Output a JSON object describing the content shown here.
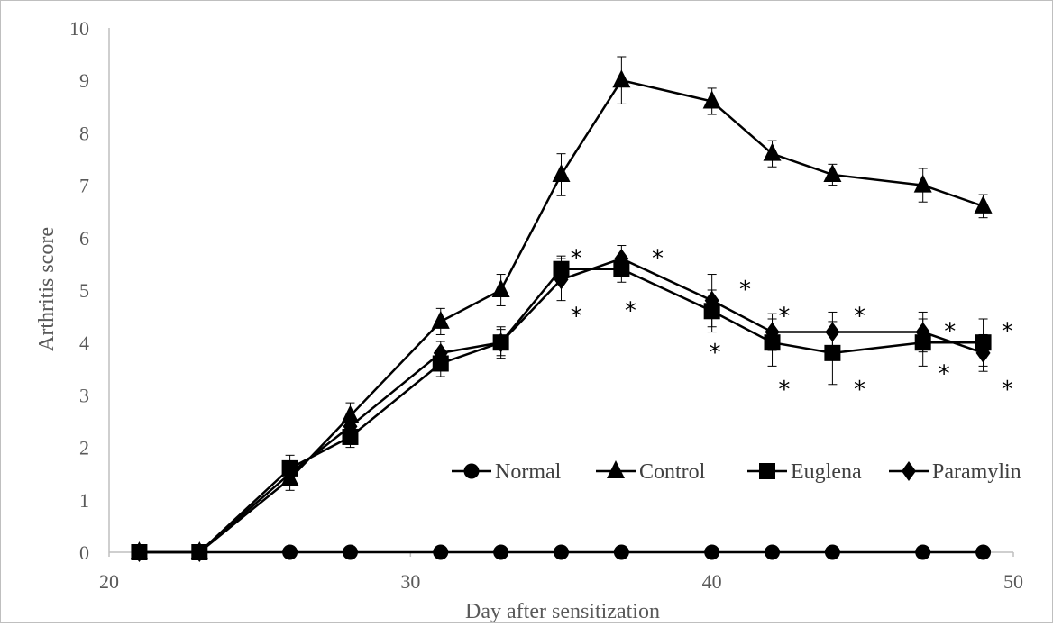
{
  "chart_data": {
    "type": "line",
    "title": "",
    "xlabel": "Day after sensitization",
    "ylabel": "Arthritis score",
    "xlim": [
      20,
      50
    ],
    "ylim": [
      0,
      10
    ],
    "x_ticks": [
      "20",
      "30",
      "40",
      "50"
    ],
    "y_ticks": [
      "0",
      "1",
      "2",
      "3",
      "4",
      "5",
      "6",
      "7",
      "8",
      "9",
      "10"
    ],
    "grid": false,
    "legend_position": "bottom-right inside",
    "series": [
      {
        "name": "Normal",
        "marker": "circle",
        "x": [
          23,
          26,
          28,
          31,
          33,
          35,
          37,
          40,
          42,
          44,
          47,
          49
        ],
        "y": [
          0,
          0,
          0,
          0,
          0,
          0,
          0,
          0,
          0,
          0,
          0,
          0
        ],
        "err": [
          0,
          0,
          0,
          0,
          0,
          0,
          0,
          0,
          0,
          0,
          0,
          0
        ]
      },
      {
        "name": "Control",
        "marker": "triangle",
        "x": [
          21,
          23,
          26,
          28,
          31,
          33,
          35,
          37,
          40,
          42,
          44,
          47,
          49
        ],
        "y": [
          0,
          0,
          1.4,
          2.6,
          4.4,
          5.0,
          7.2,
          9.0,
          8.6,
          7.6,
          7.2,
          7.0,
          6.6
        ],
        "err": [
          0,
          0,
          0.22,
          0.25,
          0.25,
          0.3,
          0.4,
          0.45,
          0.25,
          0.25,
          0.2,
          0.32,
          0.22
        ]
      },
      {
        "name": "Euglena",
        "marker": "square",
        "x": [
          21,
          23,
          26,
          28,
          31,
          33,
          35,
          37,
          40,
          42,
          44,
          47,
          49
        ],
        "y": [
          0,
          0,
          1.6,
          2.2,
          3.6,
          4.0,
          5.4,
          5.4,
          4.6,
          4.0,
          3.8,
          4.0,
          4.0
        ],
        "err": [
          0,
          0,
          0.25,
          0.2,
          0.25,
          0.3,
          0.25,
          0.25,
          0.4,
          0.45,
          0.6,
          0.45,
          0.45
        ]
      },
      {
        "name": "Paramylin",
        "marker": "diamond",
        "x": [
          21,
          23,
          26,
          28,
          31,
          33,
          35,
          37,
          40,
          42,
          44,
          47,
          49
        ],
        "y": [
          0,
          0,
          1.5,
          2.4,
          3.8,
          4.0,
          5.2,
          5.6,
          4.8,
          4.2,
          4.2,
          4.2,
          3.8
        ],
        "err": [
          0,
          0,
          0.22,
          0.2,
          0.22,
          0.25,
          0.4,
          0.25,
          0.5,
          0.35,
          0.38,
          0.38,
          0.35
        ]
      }
    ],
    "annotations": [
      {
        "text": "*",
        "x": 35.5,
        "y": 5.7
      },
      {
        "text": "*",
        "x": 35.5,
        "y": 4.6
      },
      {
        "text": "*",
        "x": 38.2,
        "y": 5.7
      },
      {
        "text": "*",
        "x": 37.3,
        "y": 4.7
      },
      {
        "text": "*",
        "x": 41.1,
        "y": 5.1
      },
      {
        "text": "*",
        "x": 40.1,
        "y": 3.9
      },
      {
        "text": "*",
        "x": 42.4,
        "y": 4.6
      },
      {
        "text": "*",
        "x": 42.4,
        "y": 3.2
      },
      {
        "text": "*",
        "x": 44.9,
        "y": 4.6
      },
      {
        "text": "*",
        "x": 44.9,
        "y": 3.2
      },
      {
        "text": "*",
        "x": 47.9,
        "y": 4.3
      },
      {
        "text": "*",
        "x": 47.7,
        "y": 3.5
      },
      {
        "text": "*",
        "x": 49.8,
        "y": 4.3
      },
      {
        "text": "*",
        "x": 49.8,
        "y": 3.2
      }
    ]
  }
}
